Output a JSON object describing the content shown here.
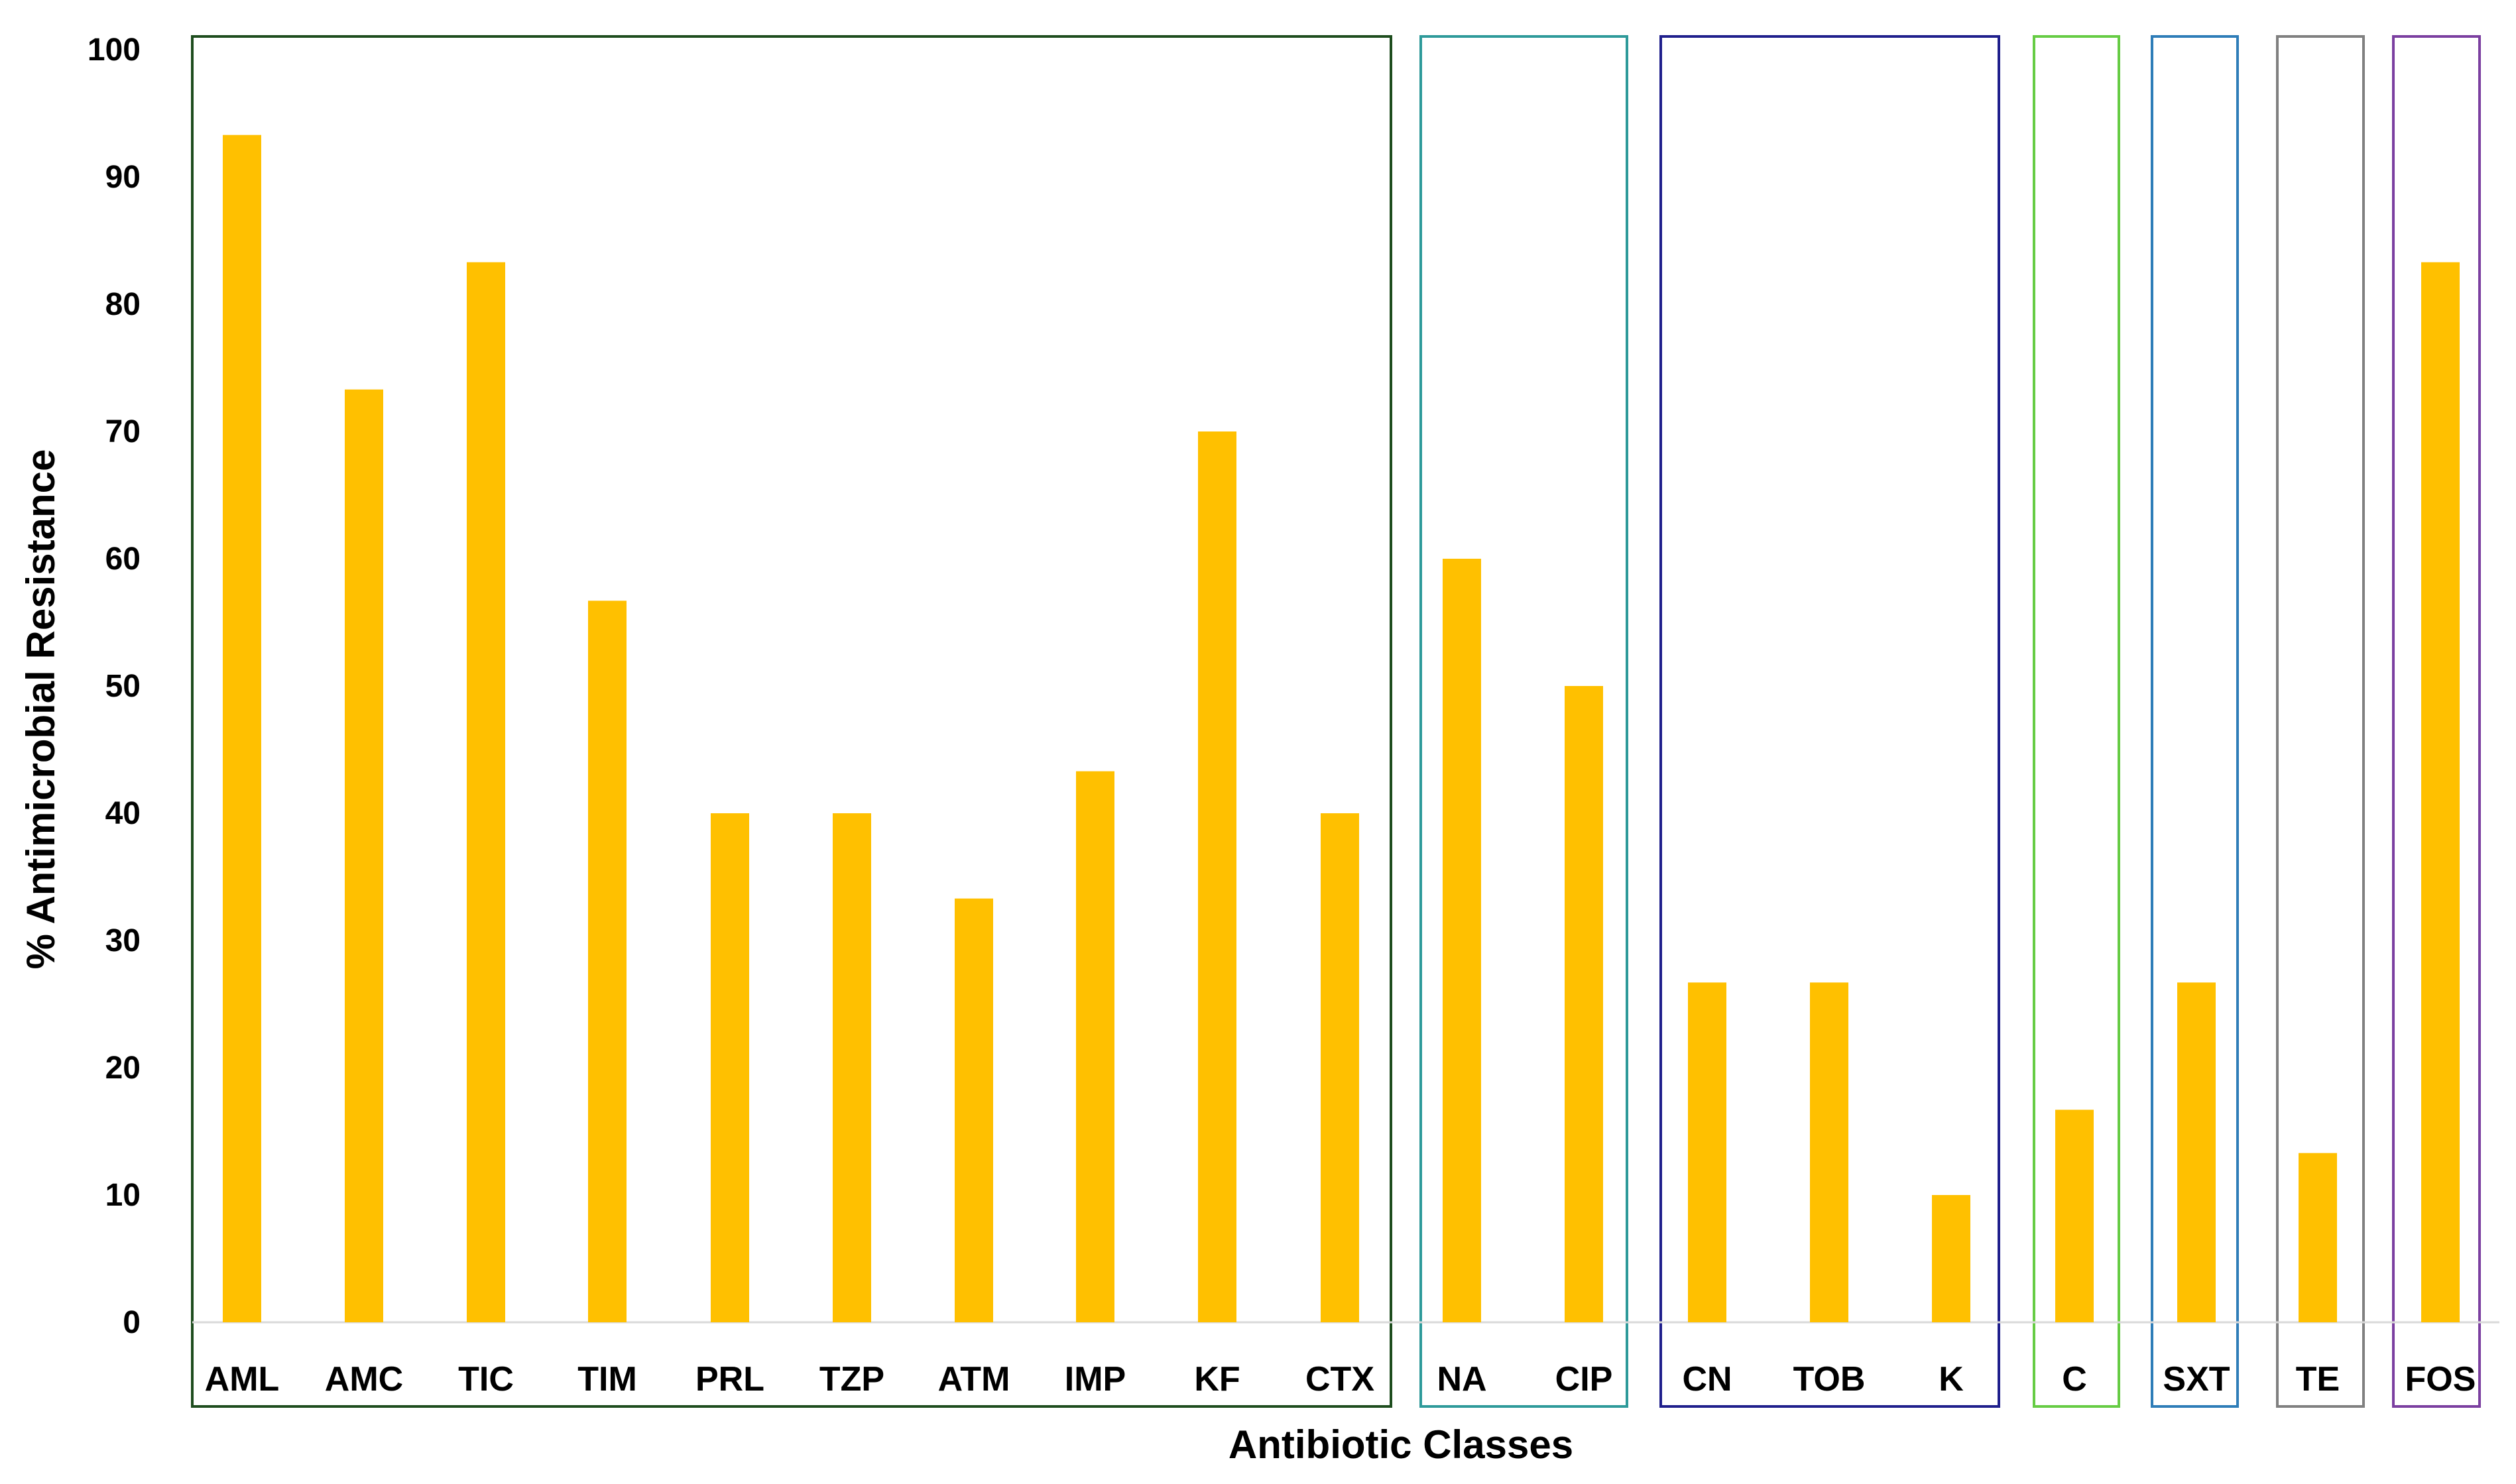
{
  "chart_data": {
    "type": "bar",
    "xlabel": "Antibiotic Classes",
    "ylabel": "% Antimicrobial Resistance",
    "ylim": [
      0,
      100
    ],
    "yticks": [
      0,
      10,
      20,
      30,
      40,
      50,
      60,
      70,
      80,
      90,
      100
    ],
    "grid": false,
    "bar_color": "#FFC000",
    "categories": [
      "AML",
      "AMC",
      "TIC",
      "TIM",
      "PRL",
      "TZP",
      "ATM",
      "IMP",
      "KF",
      "CTX",
      "NA",
      "CIP",
      "CN",
      "TOB",
      "K",
      "C",
      "SXT",
      "TE",
      "FOS"
    ],
    "values": [
      93.3,
      73.3,
      83.3,
      56.7,
      40,
      40,
      33.3,
      43.3,
      70,
      40,
      60,
      50,
      26.7,
      26.7,
      10,
      16.7,
      26.7,
      13.3,
      83.3
    ],
    "groups": [
      {
        "categories": [
          "AML",
          "AMC",
          "TIC",
          "TIM",
          "PRL",
          "TZP",
          "ATM",
          "IMP",
          "KF",
          "CTX"
        ],
        "border_color": "#1E4D1E"
      },
      {
        "categories": [
          "NA",
          "CIP"
        ],
        "border_color": "#2E9A9A"
      },
      {
        "categories": [
          "CN",
          "TOB",
          "K"
        ],
        "border_color": "#1F1F8C"
      },
      {
        "categories": [
          "C"
        ],
        "border_color": "#66CC44"
      },
      {
        "categories": [
          "SXT"
        ],
        "border_color": "#2E7DB8"
      },
      {
        "categories": [
          "TE"
        ],
        "border_color": "#808080"
      },
      {
        "categories": [
          "FOS"
        ],
        "border_color": "#7B3FA0"
      }
    ]
  }
}
